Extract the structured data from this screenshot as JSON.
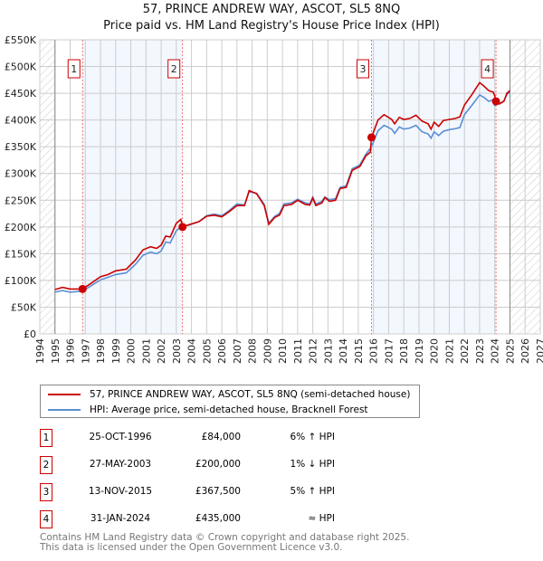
{
  "title": {
    "line1": "57, PRINCE ANDREW WAY, ASCOT, SL5 8NQ",
    "line2": "Price paid vs. HM Land Registry's House Price Index (HPI)"
  },
  "chart_data": {
    "type": "line",
    "xlim": [
      1994,
      2027
    ],
    "ylim": [
      0,
      550000
    ],
    "x_ticks": [
      1994,
      1995,
      1996,
      1997,
      1998,
      1999,
      2000,
      2001,
      2002,
      2003,
      2004,
      2005,
      2006,
      2007,
      2008,
      2009,
      2010,
      2011,
      2012,
      2013,
      2014,
      2015,
      2016,
      2017,
      2018,
      2019,
      2020,
      2021,
      2022,
      2023,
      2024,
      2025,
      2026,
      2027
    ],
    "y_ticks": [
      0,
      50000,
      100000,
      150000,
      200000,
      250000,
      300000,
      350000,
      400000,
      450000,
      500000,
      550000
    ],
    "y_tick_labels": [
      "£0",
      "£50K",
      "£100K",
      "£150K",
      "£200K",
      "£250K",
      "£300K",
      "£350K",
      "£400K",
      "£450K",
      "£500K",
      "£550K"
    ],
    "grid": true,
    "data_range": [
      1995,
      2025
    ],
    "series": [
      {
        "name": "57, PRINCE ANDREW WAY, ASCOT, SL5 8NQ (semi-detached house)",
        "color": "#cc0000",
        "x": [
          1995,
          1995.5,
          1996,
          1996.82,
          1997.5,
          1998,
          1998.5,
          1999,
          1999.7,
          2000.3,
          2000.8,
          2001.3,
          2001.7,
          2002,
          2002.3,
          2002.6,
          2003,
          2003.3,
          2003.41,
          2003.8,
          2004.5,
          2005,
          2005.5,
          2006,
          2006.5,
          2007,
          2007.5,
          2007.8,
          2008.3,
          2008.8,
          2009.1,
          2009.5,
          2009.8,
          2010.1,
          2010.6,
          2011,
          2011.5,
          2011.8,
          2012,
          2012.2,
          2012.6,
          2012.8,
          2013.1,
          2013.5,
          2013.8,
          2014.2,
          2014.6,
          2015.1,
          2015.5,
          2015.8,
          2015.87,
          2016.3,
          2016.7,
          2017.2,
          2017.4,
          2017.7,
          2018,
          2018.4,
          2018.8,
          2019.2,
          2019.6,
          2019.8,
          2020,
          2020.3,
          2020.6,
          2021,
          2021.4,
          2021.7,
          2022,
          2022.5,
          2023,
          2023.3,
          2023.6,
          2023.9,
          2024,
          2024.08,
          2024.3,
          2024.6,
          2024.8,
          2025
        ],
        "y": [
          83,
          87,
          84,
          84,
          97,
          107,
          111,
          118,
          121,
          138,
          157,
          163,
          160,
          166,
          183,
          181,
          207,
          214,
          200,
          204,
          210,
          220,
          222,
          219,
          229,
          240,
          240,
          268,
          262,
          240,
          205,
          218,
          222,
          240,
          242,
          250,
          242,
          241,
          254,
          240,
          245,
          255,
          248,
          250,
          272,
          274,
          306,
          313,
          333,
          340,
          367.5,
          400,
          410,
          401,
          393,
          405,
          401,
          403,
          409,
          398,
          393,
          383,
          396,
          388,
          399,
          401,
          403,
          406,
          428,
          448,
          470,
          463,
          455,
          452,
          445,
          435,
          430,
          435,
          450,
          455
        ],
        "y_unit": "thousand GBP"
      },
      {
        "name": "HPI: Average price, semi-detached house, Bracknell Forest",
        "color": "#5b8fd4",
        "x": [
          1995,
          1995.5,
          1996,
          1996.82,
          1997.5,
          1998,
          1998.5,
          1999,
          1999.7,
          2000.3,
          2000.8,
          2001.3,
          2001.7,
          2002,
          2002.3,
          2002.6,
          2003,
          2003.3,
          2003.41,
          2003.8,
          2004.5,
          2005,
          2005.5,
          2006,
          2006.5,
          2007,
          2007.5,
          2007.8,
          2008.3,
          2008.8,
          2009.1,
          2009.5,
          2009.8,
          2010.1,
          2010.6,
          2011,
          2011.5,
          2011.8,
          2012,
          2012.2,
          2012.6,
          2012.8,
          2013.1,
          2013.5,
          2013.8,
          2014.2,
          2014.6,
          2015.1,
          2015.5,
          2015.87,
          2016.3,
          2016.7,
          2017.2,
          2017.4,
          2017.7,
          2018,
          2018.4,
          2018.8,
          2019.2,
          2019.6,
          2019.8,
          2020,
          2020.3,
          2020.6,
          2021,
          2021.4,
          2021.7,
          2022,
          2022.5,
          2023,
          2023.3,
          2023.6,
          2023.9,
          2024,
          2024.08,
          2024.3,
          2024.6,
          2024.8,
          2025
        ],
        "y": [
          78,
          81,
          78,
          80,
          92,
          101,
          106,
          111,
          114,
          130,
          147,
          153,
          150,
          155,
          172,
          170,
          193,
          200,
          202,
          203,
          210,
          221,
          224,
          221,
          231,
          243,
          241,
          266,
          263,
          242,
          207,
          220,
          225,
          243,
          245,
          252,
          245,
          243,
          256,
          243,
          248,
          256,
          251,
          253,
          274,
          277,
          309,
          316,
          336,
          350,
          380,
          390,
          383,
          375,
          387,
          383,
          385,
          390,
          378,
          374,
          366,
          378,
          371,
          379,
          382,
          384,
          386,
          410,
          428,
          447,
          442,
          435,
          438,
          426,
          435,
          430,
          436,
          448,
          452
        ],
        "y_unit": "thousand GBP"
      }
    ],
    "sales": [
      {
        "label": "1",
        "x": 1996.82,
        "y": 84000
      },
      {
        "label": "2",
        "x": 2003.41,
        "y": 200000
      },
      {
        "label": "3",
        "x": 2015.87,
        "y": 367500
      },
      {
        "label": "4",
        "x": 2024.08,
        "y": 435000
      }
    ]
  },
  "legend": {
    "property": "57, PRINCE ANDREW WAY, ASCOT, SL5 8NQ (semi-detached house)",
    "hpi": "HPI: Average price, semi-detached house, Bracknell Forest"
  },
  "transactions": [
    {
      "num": "1",
      "date": "25-OCT-1996",
      "price": "£84,000",
      "hpi": "6% ↑ HPI"
    },
    {
      "num": "2",
      "date": "27-MAY-2003",
      "price": "£200,000",
      "hpi": "1% ↓ HPI"
    },
    {
      "num": "3",
      "date": "13-NOV-2015",
      "price": "£367,500",
      "hpi": "5% ↑ HPI"
    },
    {
      "num": "4",
      "date": "31-JAN-2024",
      "price": "£435,000",
      "hpi": "≈ HPI"
    }
  ],
  "footer": {
    "line1": "Contains HM Land Registry data © Crown copyright and database right 2025.",
    "line2": "This data is licensed under the Open Government Licence v3.0."
  }
}
